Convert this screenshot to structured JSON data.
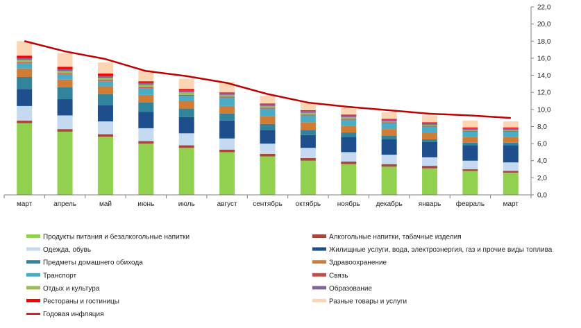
{
  "chart_data": {
    "type": "bar",
    "stacked": true,
    "categories": [
      "март",
      "апрель",
      "май",
      "июнь",
      "июль",
      "август",
      "сентябрь",
      "октябрь",
      "ноябрь",
      "декабрь",
      "январь",
      "февраль",
      "март"
    ],
    "y_axis": {
      "position": "right",
      "ylim": [
        0,
        22
      ],
      "ticks": [
        "0,0",
        "2,0",
        "4,0",
        "6,0",
        "8,0",
        "10,0",
        "12,0",
        "14,0",
        "16,0",
        "18,0",
        "20,0",
        "22,0"
      ]
    },
    "grid": false,
    "legend_placement": "bottom",
    "series": [
      {
        "name": "Продукты питания и безалкогольные напитки",
        "color": "#92d050",
        "values": [
          8.4,
          7.4,
          6.8,
          6.0,
          5.5,
          5.0,
          4.5,
          4.0,
          3.6,
          3.3,
          3.1,
          2.8,
          2.6
        ]
      },
      {
        "name": "Алкогольные напитки, табачные изделия",
        "color": "#a5473b",
        "values": [
          0.3,
          0.3,
          0.3,
          0.3,
          0.3,
          0.3,
          0.3,
          0.3,
          0.3,
          0.3,
          0.3,
          0.2,
          0.2
        ]
      },
      {
        "name": "Одежда, обувь",
        "color": "#c5d9f1",
        "values": [
          1.7,
          1.6,
          1.5,
          1.5,
          1.4,
          1.3,
          1.2,
          1.2,
          1.1,
          1.1,
          1.0,
          1.0,
          1.0
        ]
      },
      {
        "name": "Жилищные услуги, вода, электроэнергия, газ и прочие виды топлива",
        "color": "#1f4e8c",
        "values": [
          2.0,
          1.9,
          1.9,
          1.9,
          1.9,
          2.1,
          1.6,
          1.5,
          1.8,
          1.8,
          1.8,
          1.8,
          2.0
        ]
      },
      {
        "name": "Предметы домашнего обихода",
        "color": "#31849b",
        "values": [
          1.4,
          1.4,
          1.3,
          1.1,
          1.0,
          0.8,
          0.7,
          0.6,
          0.5,
          0.4,
          0.3,
          0.3,
          0.3
        ]
      },
      {
        "name": "Здравоохранение",
        "color": "#d07c35",
        "values": [
          1.0,
          0.9,
          0.9,
          0.9,
          0.9,
          0.9,
          0.9,
          0.9,
          0.8,
          0.8,
          0.8,
          0.7,
          0.7
        ]
      },
      {
        "name": "Транспорт",
        "color": "#4bacc6",
        "values": [
          0.6,
          0.6,
          0.6,
          0.8,
          0.6,
          1.0,
          0.9,
          0.8,
          0.7,
          0.7,
          0.7,
          0.6,
          0.6
        ]
      },
      {
        "name": "Связь",
        "color": "#c0504d",
        "values": [
          0.1,
          0.1,
          0.1,
          0.1,
          0.1,
          0.1,
          0.1,
          0.1,
          0.1,
          0.1,
          0.1,
          0.1,
          0.1
        ]
      },
      {
        "name": "Отдых и культура",
        "color": "#9bbb59",
        "values": [
          0.3,
          0.3,
          0.3,
          0.3,
          0.3,
          0.2,
          0.2,
          0.2,
          0.2,
          0.1,
          0.1,
          0.1,
          0.1
        ]
      },
      {
        "name": "Образование",
        "color": "#8064a2",
        "values": [
          0.2,
          0.2,
          0.2,
          0.2,
          0.2,
          0.2,
          0.2,
          0.2,
          0.2,
          0.2,
          0.2,
          0.2,
          0.2
        ]
      },
      {
        "name": "Рестораны и гостиницы",
        "color": "#ff0000",
        "values": [
          0.3,
          0.3,
          0.3,
          0.2,
          0.2,
          0.1,
          0.1,
          0.1,
          0.1,
          0.1,
          0.1,
          0.1,
          0.1
        ]
      },
      {
        "name": "Разные товары и услуги",
        "color": "#fcd5b4",
        "values": [
          1.7,
          1.6,
          1.3,
          1.3,
          1.2,
          1.2,
          0.9,
          0.9,
          0.8,
          0.8,
          0.8,
          0.8,
          0.7
        ]
      }
    ],
    "line_series": {
      "name": "Годовая инфляция",
      "color": "#c00000",
      "values": [
        18.0,
        16.8,
        15.9,
        14.5,
        13.9,
        13.1,
        11.8,
        10.8,
        10.3,
        9.9,
        9.5,
        9.3,
        9.0
      ]
    }
  }
}
